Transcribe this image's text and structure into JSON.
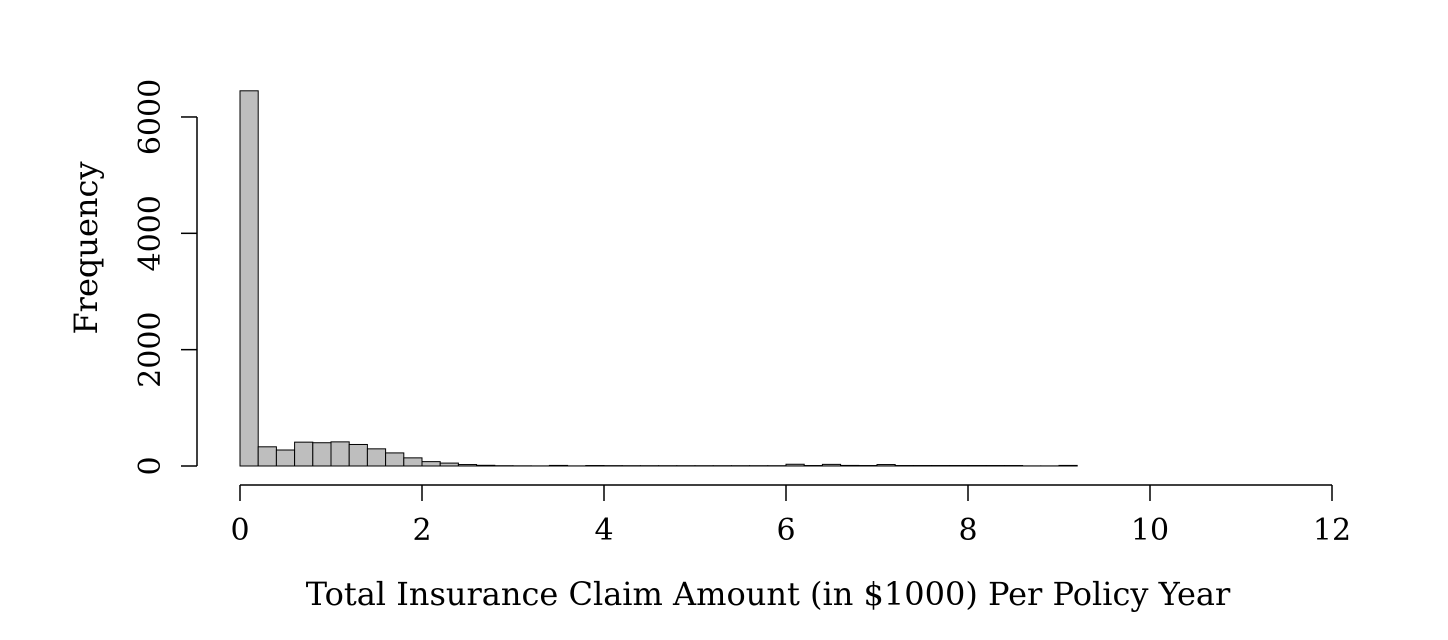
{
  "chart_data": {
    "type": "bar",
    "xlabel": "Total Insurance Claim Amount (in $1000) Per Policy Year",
    "ylabel": "Frequency",
    "x_ticks": [
      0,
      2,
      4,
      6,
      8,
      10,
      12
    ],
    "y_ticks": [
      0,
      2000,
      4000,
      6000
    ],
    "xlim": [
      0,
      12
    ],
    "ylim": [
      0,
      6500
    ],
    "bin_width": 0.2,
    "bin_start": 0,
    "values": [
      6450,
      330,
      275,
      410,
      400,
      415,
      370,
      295,
      225,
      140,
      75,
      50,
      25,
      12,
      5,
      3,
      2,
      10,
      2,
      8,
      6,
      5,
      5,
      5,
      5,
      5,
      5,
      5,
      5,
      5,
      30,
      8,
      28,
      10,
      8,
      25,
      8,
      8,
      8,
      8,
      8,
      8,
      8,
      2,
      2,
      10,
      0,
      0,
      0,
      0,
      0,
      0,
      0,
      0,
      0,
      0,
      0,
      0
    ],
    "colors": {
      "bar_fill": "#bebebe",
      "bar_stroke": "#000000"
    },
    "grid": false,
    "legend": "none"
  }
}
